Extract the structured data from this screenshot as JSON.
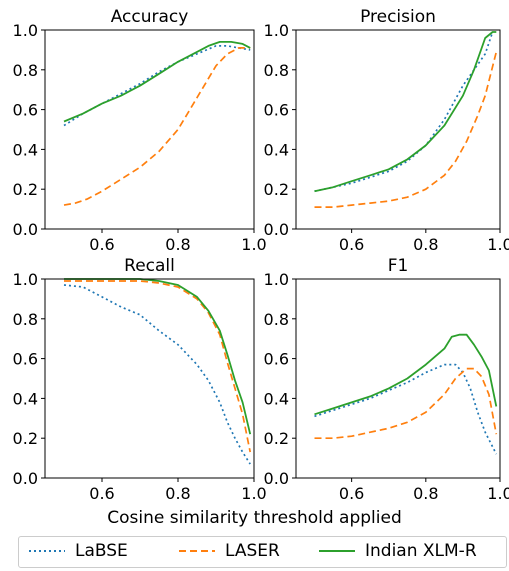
{
  "chart_data": [
    {
      "type": "line",
      "title": "Accuracy",
      "xlim": [
        0.45,
        1.0
      ],
      "ylim": [
        0.0,
        1.0
      ],
      "xticks": [
        "0.6",
        "0.8",
        "1.0"
      ],
      "yticks": [
        "0.0",
        "0.2",
        "0.4",
        "0.6",
        "0.8",
        "1.0"
      ],
      "series": [
        {
          "name": "LaBSE",
          "style": "dotted",
          "color": "#1f77b4",
          "x": [
            0.5,
            0.55,
            0.6,
            0.65,
            0.7,
            0.75,
            0.8,
            0.85,
            0.9,
            0.93,
            0.96,
            0.99
          ],
          "y": [
            0.52,
            0.58,
            0.63,
            0.68,
            0.73,
            0.79,
            0.84,
            0.88,
            0.92,
            0.92,
            0.91,
            0.9
          ]
        },
        {
          "name": "LASER",
          "style": "dashed",
          "color": "#ff7f0e",
          "x": [
            0.5,
            0.53,
            0.56,
            0.6,
            0.65,
            0.7,
            0.75,
            0.8,
            0.85,
            0.9,
            0.93,
            0.96,
            0.99
          ],
          "y": [
            0.12,
            0.13,
            0.15,
            0.19,
            0.25,
            0.31,
            0.39,
            0.5,
            0.66,
            0.82,
            0.88,
            0.91,
            0.91
          ]
        },
        {
          "name": "Indian XLM-R",
          "style": "solid",
          "color": "#2ca02c",
          "x": [
            0.5,
            0.55,
            0.6,
            0.65,
            0.7,
            0.75,
            0.8,
            0.85,
            0.88,
            0.91,
            0.94,
            0.97,
            0.99
          ],
          "y": [
            0.54,
            0.58,
            0.63,
            0.67,
            0.72,
            0.78,
            0.84,
            0.89,
            0.92,
            0.94,
            0.94,
            0.93,
            0.91
          ]
        }
      ]
    },
    {
      "type": "line",
      "title": "Precision",
      "xlim": [
        0.45,
        1.0
      ],
      "ylim": [
        0.0,
        1.0
      ],
      "xticks": [
        "0.6",
        "0.8",
        "1.0"
      ],
      "yticks": [
        "0.0",
        "0.2",
        "0.4",
        "0.6",
        "0.8",
        "1.0"
      ],
      "series": [
        {
          "name": "LaBSE",
          "style": "dotted",
          "color": "#1f77b4",
          "x": [
            0.5,
            0.55,
            0.6,
            0.65,
            0.7,
            0.75,
            0.8,
            0.85,
            0.9,
            0.93,
            0.96,
            0.98
          ],
          "y": [
            0.19,
            0.21,
            0.23,
            0.26,
            0.29,
            0.34,
            0.42,
            0.55,
            0.72,
            0.8,
            0.88,
            0.99
          ]
        },
        {
          "name": "LASER",
          "style": "dashed",
          "color": "#ff7f0e",
          "x": [
            0.5,
            0.55,
            0.6,
            0.65,
            0.7,
            0.75,
            0.8,
            0.85,
            0.88,
            0.91,
            0.94,
            0.96,
            0.99
          ],
          "y": [
            0.11,
            0.11,
            0.12,
            0.13,
            0.14,
            0.16,
            0.2,
            0.27,
            0.34,
            0.44,
            0.57,
            0.67,
            0.89
          ]
        },
        {
          "name": "Indian XLM-R",
          "style": "solid",
          "color": "#2ca02c",
          "x": [
            0.5,
            0.55,
            0.6,
            0.65,
            0.7,
            0.75,
            0.8,
            0.85,
            0.9,
            0.93,
            0.96,
            0.98,
            0.99
          ],
          "y": [
            0.19,
            0.21,
            0.24,
            0.27,
            0.3,
            0.35,
            0.42,
            0.52,
            0.67,
            0.8,
            0.96,
            0.99,
            0.99
          ]
        }
      ]
    },
    {
      "type": "line",
      "title": "Recall",
      "xlim": [
        0.45,
        1.0
      ],
      "ylim": [
        0.0,
        1.0
      ],
      "xticks": [
        "0.6",
        "0.8",
        "1.0"
      ],
      "yticks": [
        "0.0",
        "0.2",
        "0.4",
        "0.6",
        "0.8",
        "1.0"
      ],
      "series": [
        {
          "name": "LaBSE",
          "style": "dotted",
          "color": "#1f77b4",
          "x": [
            0.5,
            0.55,
            0.6,
            0.65,
            0.7,
            0.75,
            0.8,
            0.85,
            0.88,
            0.91,
            0.93,
            0.95,
            0.97,
            0.99
          ],
          "y": [
            0.97,
            0.96,
            0.91,
            0.86,
            0.82,
            0.74,
            0.67,
            0.57,
            0.49,
            0.38,
            0.28,
            0.2,
            0.13,
            0.07
          ]
        },
        {
          "name": "LASER",
          "style": "dashed",
          "color": "#ff7f0e",
          "x": [
            0.5,
            0.55,
            0.6,
            0.65,
            0.7,
            0.75,
            0.8,
            0.85,
            0.88,
            0.91,
            0.93,
            0.95,
            0.97,
            0.99
          ],
          "y": [
            0.99,
            0.99,
            0.99,
            0.99,
            0.99,
            0.98,
            0.96,
            0.9,
            0.83,
            0.72,
            0.58,
            0.45,
            0.32,
            0.13
          ]
        },
        {
          "name": "Indian XLM-R",
          "style": "solid",
          "color": "#2ca02c",
          "x": [
            0.5,
            0.55,
            0.6,
            0.65,
            0.7,
            0.75,
            0.8,
            0.85,
            0.88,
            0.91,
            0.93,
            0.95,
            0.97,
            0.99
          ],
          "y": [
            1.0,
            1.0,
            1.0,
            1.0,
            1.0,
            0.99,
            0.97,
            0.91,
            0.84,
            0.74,
            0.62,
            0.49,
            0.38,
            0.22
          ]
        }
      ]
    },
    {
      "type": "line",
      "title": "F1",
      "xlim": [
        0.45,
        1.0
      ],
      "ylim": [
        0.0,
        1.0
      ],
      "xticks": [
        "0.6",
        "0.8",
        "1.0"
      ],
      "yticks": [
        "0.0",
        "0.2",
        "0.4",
        "0.6",
        "0.8",
        "1.0"
      ],
      "series": [
        {
          "name": "LaBSE",
          "style": "dotted",
          "color": "#1f77b4",
          "x": [
            0.5,
            0.55,
            0.6,
            0.65,
            0.7,
            0.75,
            0.8,
            0.85,
            0.88,
            0.9,
            0.92,
            0.94,
            0.96,
            0.99
          ],
          "y": [
            0.31,
            0.34,
            0.37,
            0.4,
            0.44,
            0.48,
            0.53,
            0.57,
            0.57,
            0.53,
            0.45,
            0.33,
            0.23,
            0.12
          ]
        },
        {
          "name": "LASER",
          "style": "dashed",
          "color": "#ff7f0e",
          "x": [
            0.5,
            0.55,
            0.6,
            0.65,
            0.7,
            0.75,
            0.8,
            0.85,
            0.88,
            0.91,
            0.93,
            0.95,
            0.97,
            0.99
          ],
          "y": [
            0.2,
            0.2,
            0.21,
            0.23,
            0.25,
            0.28,
            0.33,
            0.42,
            0.5,
            0.55,
            0.55,
            0.51,
            0.42,
            0.22
          ]
        },
        {
          "name": "Indian XLM-R",
          "style": "solid",
          "color": "#2ca02c",
          "x": [
            0.5,
            0.55,
            0.6,
            0.65,
            0.7,
            0.75,
            0.8,
            0.85,
            0.87,
            0.89,
            0.91,
            0.93,
            0.95,
            0.97,
            0.99
          ],
          "y": [
            0.32,
            0.35,
            0.38,
            0.41,
            0.45,
            0.5,
            0.57,
            0.65,
            0.71,
            0.72,
            0.72,
            0.67,
            0.61,
            0.54,
            0.36
          ]
        }
      ]
    }
  ],
  "xlabel": "Cosine similarity threshold applied",
  "legend": {
    "placement": "bottom",
    "items": [
      {
        "label": "LaBSE",
        "style": "dotted",
        "color": "#1f77b4"
      },
      {
        "label": "LASER",
        "style": "dashed",
        "color": "#ff7f0e"
      },
      {
        "label": "Indian XLM-R",
        "style": "solid",
        "color": "#2ca02c"
      }
    ]
  }
}
